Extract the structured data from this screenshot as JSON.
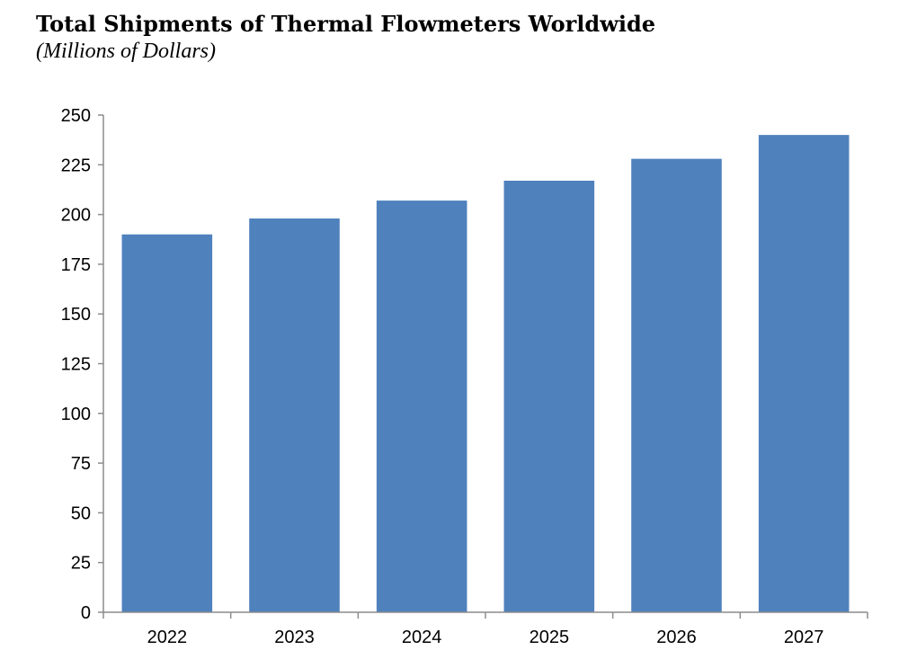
{
  "chart_data": {
    "type": "bar",
    "title": "Total Shipments of Thermal Flowmeters Worldwide",
    "subtitle": "(Millions of Dollars)",
    "categories": [
      "2022",
      "2023",
      "2024",
      "2025",
      "2026",
      "2027"
    ],
    "series": [
      {
        "values": [
          190,
          198,
          207,
          217,
          228,
          240
        ]
      }
    ],
    "xlabel": "",
    "ylabel": "",
    "ylim": [
      0,
      250
    ],
    "yticks": [
      "0",
      "25",
      "50",
      "75",
      "100",
      "125",
      "150",
      "175",
      "200",
      "225",
      "250"
    ],
    "grid": false,
    "legend": "none",
    "bar_color": "#4f81bd",
    "axis_color": "#8c8c8c"
  }
}
